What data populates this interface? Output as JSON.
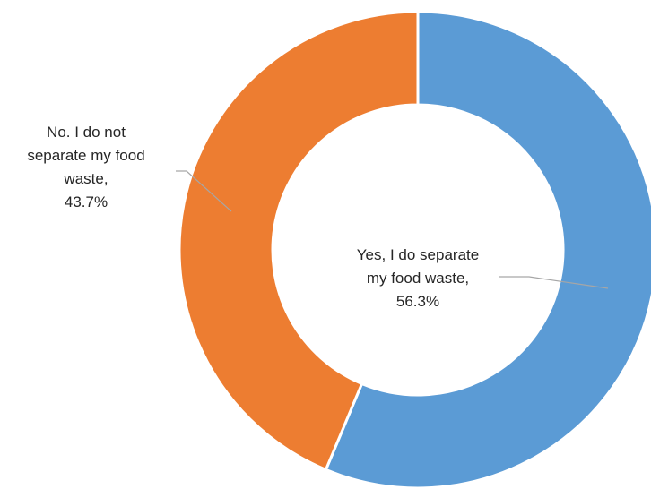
{
  "chart_data": {
    "type": "pie",
    "variant": "doughnut",
    "title": "",
    "slices": [
      {
        "category": "Yes, I do separate my food waste",
        "value": 56.3,
        "color": "#5B9BD5",
        "label_lines": [
          "Yes, I do separate",
          "my food waste,",
          "56.3%"
        ]
      },
      {
        "category": "No. I do not separate my food waste",
        "value": 43.7,
        "color": "#ED7D31",
        "label_lines": [
          "No. I do not",
          "separate my food",
          "waste,",
          "43.7%"
        ]
      }
    ],
    "start_angle_deg": 0,
    "direction": "clockwise",
    "legend": "none",
    "leader_line_color": "#A6A6A6",
    "slice_border_color": "#FFFFFF"
  }
}
